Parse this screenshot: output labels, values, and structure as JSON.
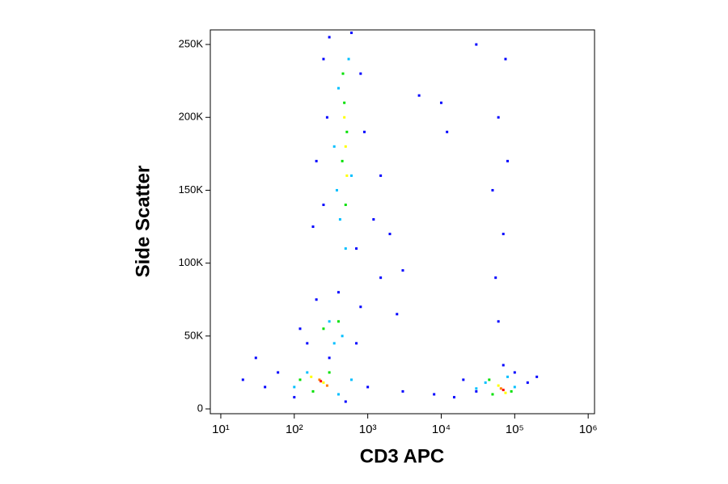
{
  "chart_data": {
    "type": "scatter",
    "xlabel": "CD3 APC",
    "ylabel": "Side Scatter",
    "xscale": "log",
    "xlim": [
      7.2,
      1220000
    ],
    "xticks": [
      {
        "value": 10,
        "label": "10¹"
      },
      {
        "value": 100,
        "label": "10²"
      },
      {
        "value": 1000,
        "label": "10³"
      },
      {
        "value": 10000,
        "label": "10⁴"
      },
      {
        "value": 100000,
        "label": "10⁵"
      },
      {
        "value": 1000000,
        "label": "10⁶"
      }
    ],
    "ylim": [
      -3300,
      260000
    ],
    "yticks": [
      0,
      {
        "value": 50000,
        "label": "50K"
      },
      {
        "value": 100000,
        "label": "100K"
      },
      {
        "value": 150000,
        "label": "150K"
      },
      {
        "value": 200000,
        "label": "200K"
      },
      {
        "value": 250000,
        "label": "250K"
      }
    ],
    "series": [
      {
        "color": "#0000ff",
        "x": [
          300,
          600,
          250,
          800,
          280,
          900,
          200,
          1500,
          250,
          1200,
          2000,
          180,
          700,
          1500,
          3000,
          400,
          800,
          200,
          2500,
          120,
          300,
          60,
          40,
          30,
          1000,
          3000,
          8000,
          20000,
          15000,
          100000,
          150000,
          200000,
          30000,
          70000,
          60000,
          55000,
          70000,
          50000,
          80000,
          60000,
          75000,
          10000,
          12000,
          30000,
          5000,
          100,
          500,
          20,
          700,
          150
        ],
        "values": [
          255000,
          258000,
          240000,
          230000,
          200000,
          190000,
          170000,
          160000,
          140000,
          130000,
          120000,
          125000,
          110000,
          90000,
          95000,
          80000,
          70000,
          75000,
          65000,
          55000,
          35000,
          25000,
          15000,
          35000,
          15000,
          12000,
          10000,
          20000,
          8000,
          25000,
          18000,
          22000,
          12000,
          30000,
          60000,
          90000,
          120000,
          150000,
          170000,
          200000,
          240000,
          210000,
          190000,
          250000,
          215000,
          8000,
          5000,
          20000,
          45000,
          45000
        ]
      },
      {
        "color": "#00bfff",
        "x": [
          400,
          550,
          350,
          600,
          420,
          500,
          380,
          300,
          450,
          350,
          150,
          100,
          400,
          40000,
          100000,
          80000,
          30000,
          600
        ],
        "values": [
          220000,
          240000,
          180000,
          160000,
          130000,
          110000,
          150000,
          60000,
          50000,
          45000,
          25000,
          15000,
          10000,
          18000,
          15000,
          22000,
          14000,
          20000
        ]
      },
      {
        "color": "#00e000",
        "x": [
          480,
          520,
          450,
          500,
          460,
          250,
          400,
          180,
          300,
          120,
          50000,
          90000,
          45000
        ],
        "values": [
          210000,
          190000,
          170000,
          140000,
          230000,
          55000,
          60000,
          12000,
          25000,
          20000,
          10000,
          12000,
          20000
        ]
      },
      {
        "color": "#ffff00",
        "x": [
          500,
          480,
          520,
          250,
          170,
          60000,
          75000
        ],
        "values": [
          180000,
          200000,
          160000,
          18000,
          22000,
          16000,
          11000
        ]
      },
      {
        "color": "#ff8000",
        "x": [
          220,
          280,
          65000
        ],
        "values": [
          20000,
          16000,
          14000
        ]
      },
      {
        "color": "#ff0000",
        "x": [
          230,
          70000
        ],
        "values": [
          19000,
          13000
        ]
      }
    ]
  }
}
